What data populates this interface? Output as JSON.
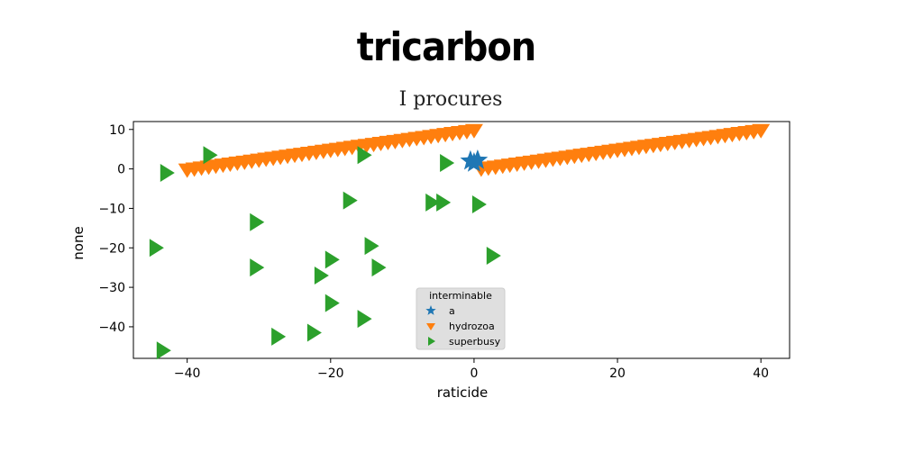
{
  "page_title": "tricarbon",
  "chart_data": {
    "type": "scatter",
    "title": "I procures",
    "xlabel": "raticide",
    "ylabel": "none",
    "xlim": [
      -47.5,
      44
    ],
    "ylim": [
      -48,
      12
    ],
    "xticks": [
      -40,
      -20,
      0,
      20,
      40
    ],
    "yticks": [
      10,
      0,
      -10,
      -20,
      -30,
      -40
    ],
    "xtick_labels": [
      "−40",
      "−20",
      "0",
      "20",
      "40"
    ],
    "ytick_labels": [
      "10",
      "0",
      "−10",
      "−20",
      "−30",
      "−40"
    ],
    "grid": false,
    "legend": {
      "title": "interminable",
      "placement": "bottom-center"
    },
    "series": [
      {
        "name": "a",
        "marker": "star",
        "color": "#1f77b4",
        "points": [
          [
            -0.5,
            2.0
          ],
          [
            0.5,
            2.2
          ],
          [
            0.0,
            1.5
          ]
        ]
      },
      {
        "name": "hydrozoa",
        "marker": "triangle-down",
        "color": "#ff7f0e",
        "points": [
          [
            -40,
            0
          ],
          [
            -39,
            0.25
          ],
          [
            -38,
            0.5
          ],
          [
            -37,
            0.75
          ],
          [
            -36,
            1
          ],
          [
            -35,
            1.25
          ],
          [
            -34,
            1.5
          ],
          [
            -33,
            1.75
          ],
          [
            -32,
            2
          ],
          [
            -31,
            2.25
          ],
          [
            -30,
            2.5
          ],
          [
            -29,
            2.75
          ],
          [
            -28,
            3
          ],
          [
            -27,
            3.25
          ],
          [
            -26,
            3.5
          ],
          [
            -25,
            3.75
          ],
          [
            -24,
            4
          ],
          [
            -23,
            4.25
          ],
          [
            -22,
            4.5
          ],
          [
            -21,
            4.75
          ],
          [
            -20,
            5
          ],
          [
            -19,
            5.25
          ],
          [
            -18,
            5.5
          ],
          [
            -17,
            5.75
          ],
          [
            -16,
            6
          ],
          [
            -15,
            6.25
          ],
          [
            -14,
            6.5
          ],
          [
            -13,
            6.75
          ],
          [
            -12,
            7
          ],
          [
            -11,
            7.25
          ],
          [
            -10,
            7.5
          ],
          [
            -9,
            7.75
          ],
          [
            -8,
            8
          ],
          [
            -7,
            8.25
          ],
          [
            -6,
            8.5
          ],
          [
            -5,
            8.75
          ],
          [
            -4,
            9
          ],
          [
            -3,
            9.25
          ],
          [
            -2,
            9.5
          ],
          [
            -1,
            9.75
          ],
          [
            0,
            10
          ],
          [
            1,
            0.25
          ],
          [
            2,
            0.5
          ],
          [
            3,
            0.75
          ],
          [
            4,
            1
          ],
          [
            5,
            1.25
          ],
          [
            6,
            1.5
          ],
          [
            7,
            1.75
          ],
          [
            8,
            2
          ],
          [
            9,
            2.25
          ],
          [
            10,
            2.5
          ],
          [
            11,
            2.75
          ],
          [
            12,
            3
          ],
          [
            13,
            3.25
          ],
          [
            14,
            3.5
          ],
          [
            15,
            3.75
          ],
          [
            16,
            4
          ],
          [
            17,
            4.25
          ],
          [
            18,
            4.5
          ],
          [
            19,
            4.75
          ],
          [
            20,
            5
          ],
          [
            21,
            5.25
          ],
          [
            22,
            5.5
          ],
          [
            23,
            5.75
          ],
          [
            24,
            6
          ],
          [
            25,
            6.25
          ],
          [
            26,
            6.5
          ],
          [
            27,
            6.75
          ],
          [
            28,
            7
          ],
          [
            29,
            7.25
          ],
          [
            30,
            7.5
          ],
          [
            31,
            7.75
          ],
          [
            32,
            8
          ],
          [
            33,
            8.25
          ],
          [
            34,
            8.5
          ],
          [
            35,
            8.75
          ],
          [
            36,
            9
          ],
          [
            37,
            9.25
          ],
          [
            38,
            9.5
          ],
          [
            39,
            9.75
          ],
          [
            40,
            10
          ]
        ]
      },
      {
        "name": "superbusy",
        "marker": "triangle-right",
        "color": "#2ca02c",
        "points": [
          [
            -43,
            -1
          ],
          [
            -37,
            3.5
          ],
          [
            -15.5,
            3.5
          ],
          [
            -4,
            1.5
          ],
          [
            -17.5,
            -8
          ],
          [
            -6,
            -8.5
          ],
          [
            -4.5,
            -8.5
          ],
          [
            0.5,
            -9
          ],
          [
            -30.5,
            -13.5
          ],
          [
            -44.5,
            -20
          ],
          [
            -14.5,
            -19.5
          ],
          [
            2.5,
            -22
          ],
          [
            -20,
            -23
          ],
          [
            -30.5,
            -25
          ],
          [
            -13.5,
            -25
          ],
          [
            -21.5,
            -27
          ],
          [
            -20,
            -34
          ],
          [
            -15.5,
            -38
          ],
          [
            -43.5,
            -46
          ],
          [
            -27.5,
            -42.5
          ],
          [
            -22.5,
            -41.5
          ]
        ]
      }
    ]
  }
}
